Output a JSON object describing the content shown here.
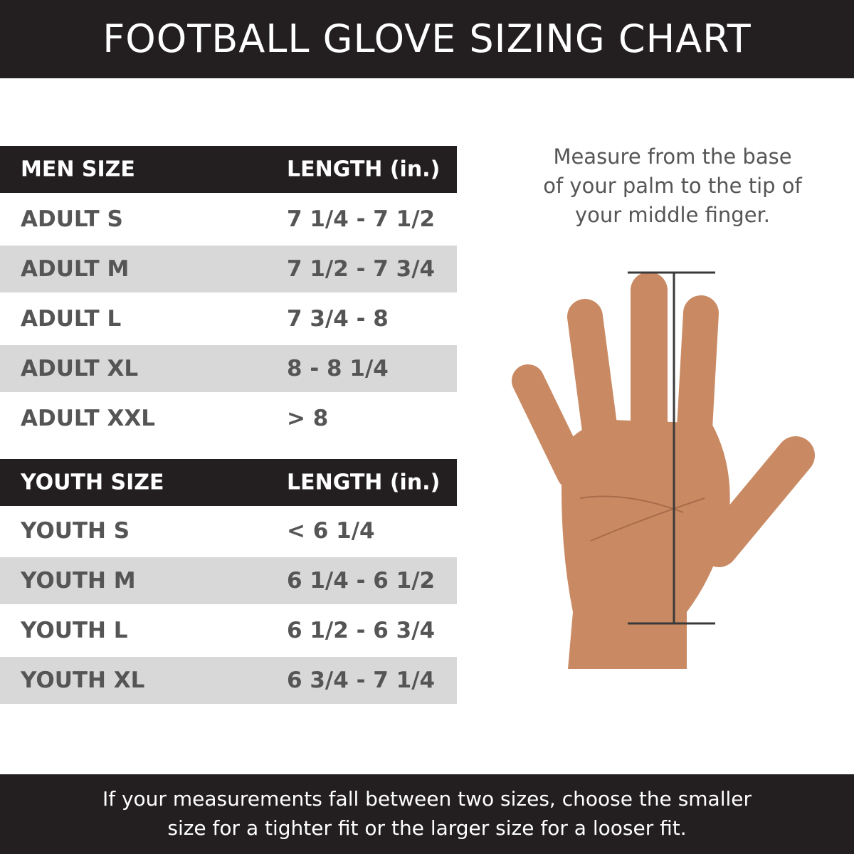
{
  "title": "FOOTBALL GLOVE SIZING CHART",
  "men": {
    "headers": [
      "MEN SIZE",
      "LENGTH (in.)"
    ],
    "rows": [
      [
        "ADULT S",
        "7 1/4 - 7 1/2"
      ],
      [
        "ADULT M",
        "7 1/2 - 7 3/4"
      ],
      [
        "ADULT L",
        "7 3/4 - 8"
      ],
      [
        "ADULT XL",
        "8 - 8 1/4"
      ],
      [
        "ADULT XXL",
        "> 8"
      ]
    ]
  },
  "youth": {
    "headers": [
      "YOUTH SIZE",
      "LENGTH (in.)"
    ],
    "rows": [
      [
        "YOUTH S",
        "< 6 1/4"
      ],
      [
        "YOUTH M",
        "6 1/4 - 6 1/2"
      ],
      [
        "YOUTH L",
        "6 1/2 - 6 3/4"
      ],
      [
        "YOUTH XL",
        "6 3/4 - 7 1/4"
      ]
    ]
  },
  "instructions": [
    "Measure from the base",
    "of your palm to the tip of",
    "your middle finger."
  ],
  "footer": [
    "If your measurements fall between two sizes, choose the smaller",
    "size for a tighter fit or the larger size for a looser fit."
  ],
  "colors": {
    "dark": "#231f20",
    "stripe": "#d8d8d8",
    "text": "#555555",
    "skin": "#c98a63"
  }
}
